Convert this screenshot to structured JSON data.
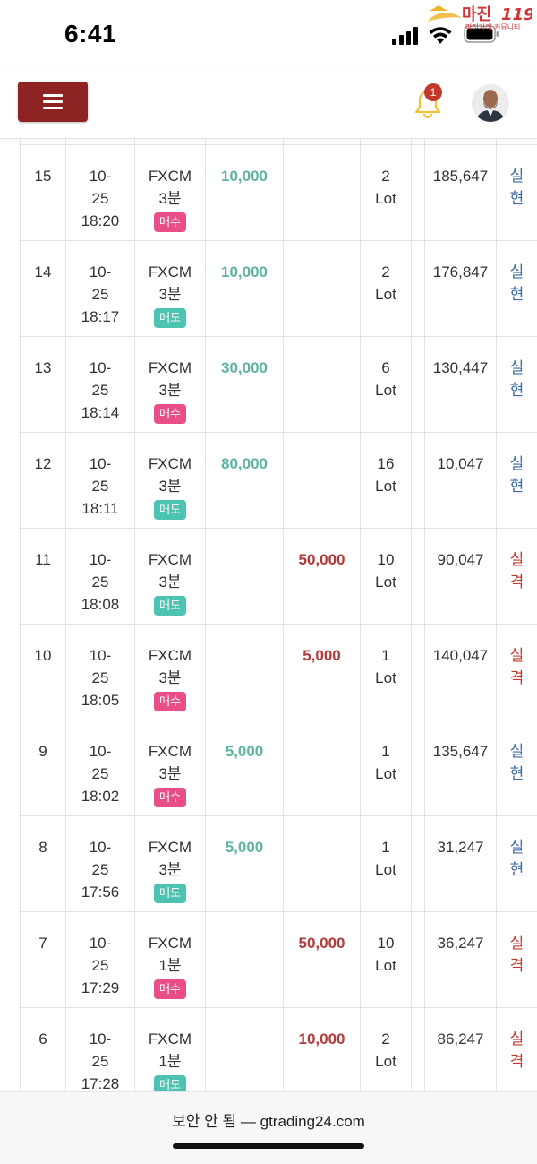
{
  "status_bar": {
    "time": "6:41"
  },
  "watermark": {
    "title": "마진",
    "number": "119",
    "subtitle": "마진거래 커뮤니티"
  },
  "header": {
    "notification_count": "1"
  },
  "rows": [
    {
      "no": "15",
      "date": "10-",
      "date2": "25",
      "time": "18:20",
      "product": "FXCM",
      "period": "3분",
      "side": "매수",
      "side_type": "buy",
      "profit": "10,000",
      "loss": "",
      "lots": "2",
      "lot_unit": "Lot",
      "balance": "185,647",
      "result1": "실",
      "result2": "현",
      "result_type": "win"
    },
    {
      "no": "14",
      "date": "10-",
      "date2": "25",
      "time": "18:17",
      "product": "FXCM",
      "period": "3분",
      "side": "매도",
      "side_type": "sell",
      "profit": "10,000",
      "loss": "",
      "lots": "2",
      "lot_unit": "Lot",
      "balance": "176,847",
      "result1": "실",
      "result2": "현",
      "result_type": "win"
    },
    {
      "no": "13",
      "date": "10-",
      "date2": "25",
      "time": "18:14",
      "product": "FXCM",
      "period": "3분",
      "side": "매수",
      "side_type": "buy",
      "profit": "30,000",
      "loss": "",
      "lots": "6",
      "lot_unit": "Lot",
      "balance": "130,447",
      "result1": "실",
      "result2": "현",
      "result_type": "win"
    },
    {
      "no": "12",
      "date": "10-",
      "date2": "25",
      "time": "18:11",
      "product": "FXCM",
      "period": "3분",
      "side": "매도",
      "side_type": "sell",
      "profit": "80,000",
      "loss": "",
      "lots": "16",
      "lot_unit": "Lot",
      "balance": "10,047",
      "result1": "실",
      "result2": "현",
      "result_type": "win"
    },
    {
      "no": "11",
      "date": "10-",
      "date2": "25",
      "time": "18:08",
      "product": "FXCM",
      "period": "3분",
      "side": "매도",
      "side_type": "sell",
      "profit": "",
      "loss": "50,000",
      "lots": "10",
      "lot_unit": "Lot",
      "balance": "90,047",
      "result1": "실",
      "result2": "격",
      "result_type": "loss"
    },
    {
      "no": "10",
      "date": "10-",
      "date2": "25",
      "time": "18:05",
      "product": "FXCM",
      "period": "3분",
      "side": "매수",
      "side_type": "buy",
      "profit": "",
      "loss": "5,000",
      "lots": "1",
      "lot_unit": "Lot",
      "balance": "140,047",
      "result1": "실",
      "result2": "격",
      "result_type": "loss"
    },
    {
      "no": "9",
      "date": "10-",
      "date2": "25",
      "time": "18:02",
      "product": "FXCM",
      "period": "3분",
      "side": "매수",
      "side_type": "buy",
      "profit": "5,000",
      "loss": "",
      "lots": "1",
      "lot_unit": "Lot",
      "balance": "135,647",
      "result1": "실",
      "result2": "현",
      "result_type": "win"
    },
    {
      "no": "8",
      "date": "10-",
      "date2": "25",
      "time": "17:56",
      "product": "FXCM",
      "period": "3분",
      "side": "매도",
      "side_type": "sell",
      "profit": "5,000",
      "loss": "",
      "lots": "1",
      "lot_unit": "Lot",
      "balance": "31,247",
      "result1": "실",
      "result2": "현",
      "result_type": "win"
    },
    {
      "no": "7",
      "date": "10-",
      "date2": "25",
      "time": "17:29",
      "product": "FXCM",
      "period": "1분",
      "side": "매수",
      "side_type": "buy",
      "profit": "",
      "loss": "50,000",
      "lots": "10",
      "lot_unit": "Lot",
      "balance": "36,247",
      "result1": "실",
      "result2": "격",
      "result_type": "loss"
    },
    {
      "no": "6",
      "date": "10-",
      "date2": "25",
      "time": "17:28",
      "product": "FXCM",
      "period": "1분",
      "side": "매도",
      "side_type": "sell",
      "profit": "",
      "loss": "10,000",
      "lots": "2",
      "lot_unit": "Lot",
      "balance": "86,247",
      "result1": "실",
      "result2": "격",
      "result_type": "loss"
    }
  ],
  "browser": {
    "url": "보안 안 됨 — gtrading24.com"
  }
}
